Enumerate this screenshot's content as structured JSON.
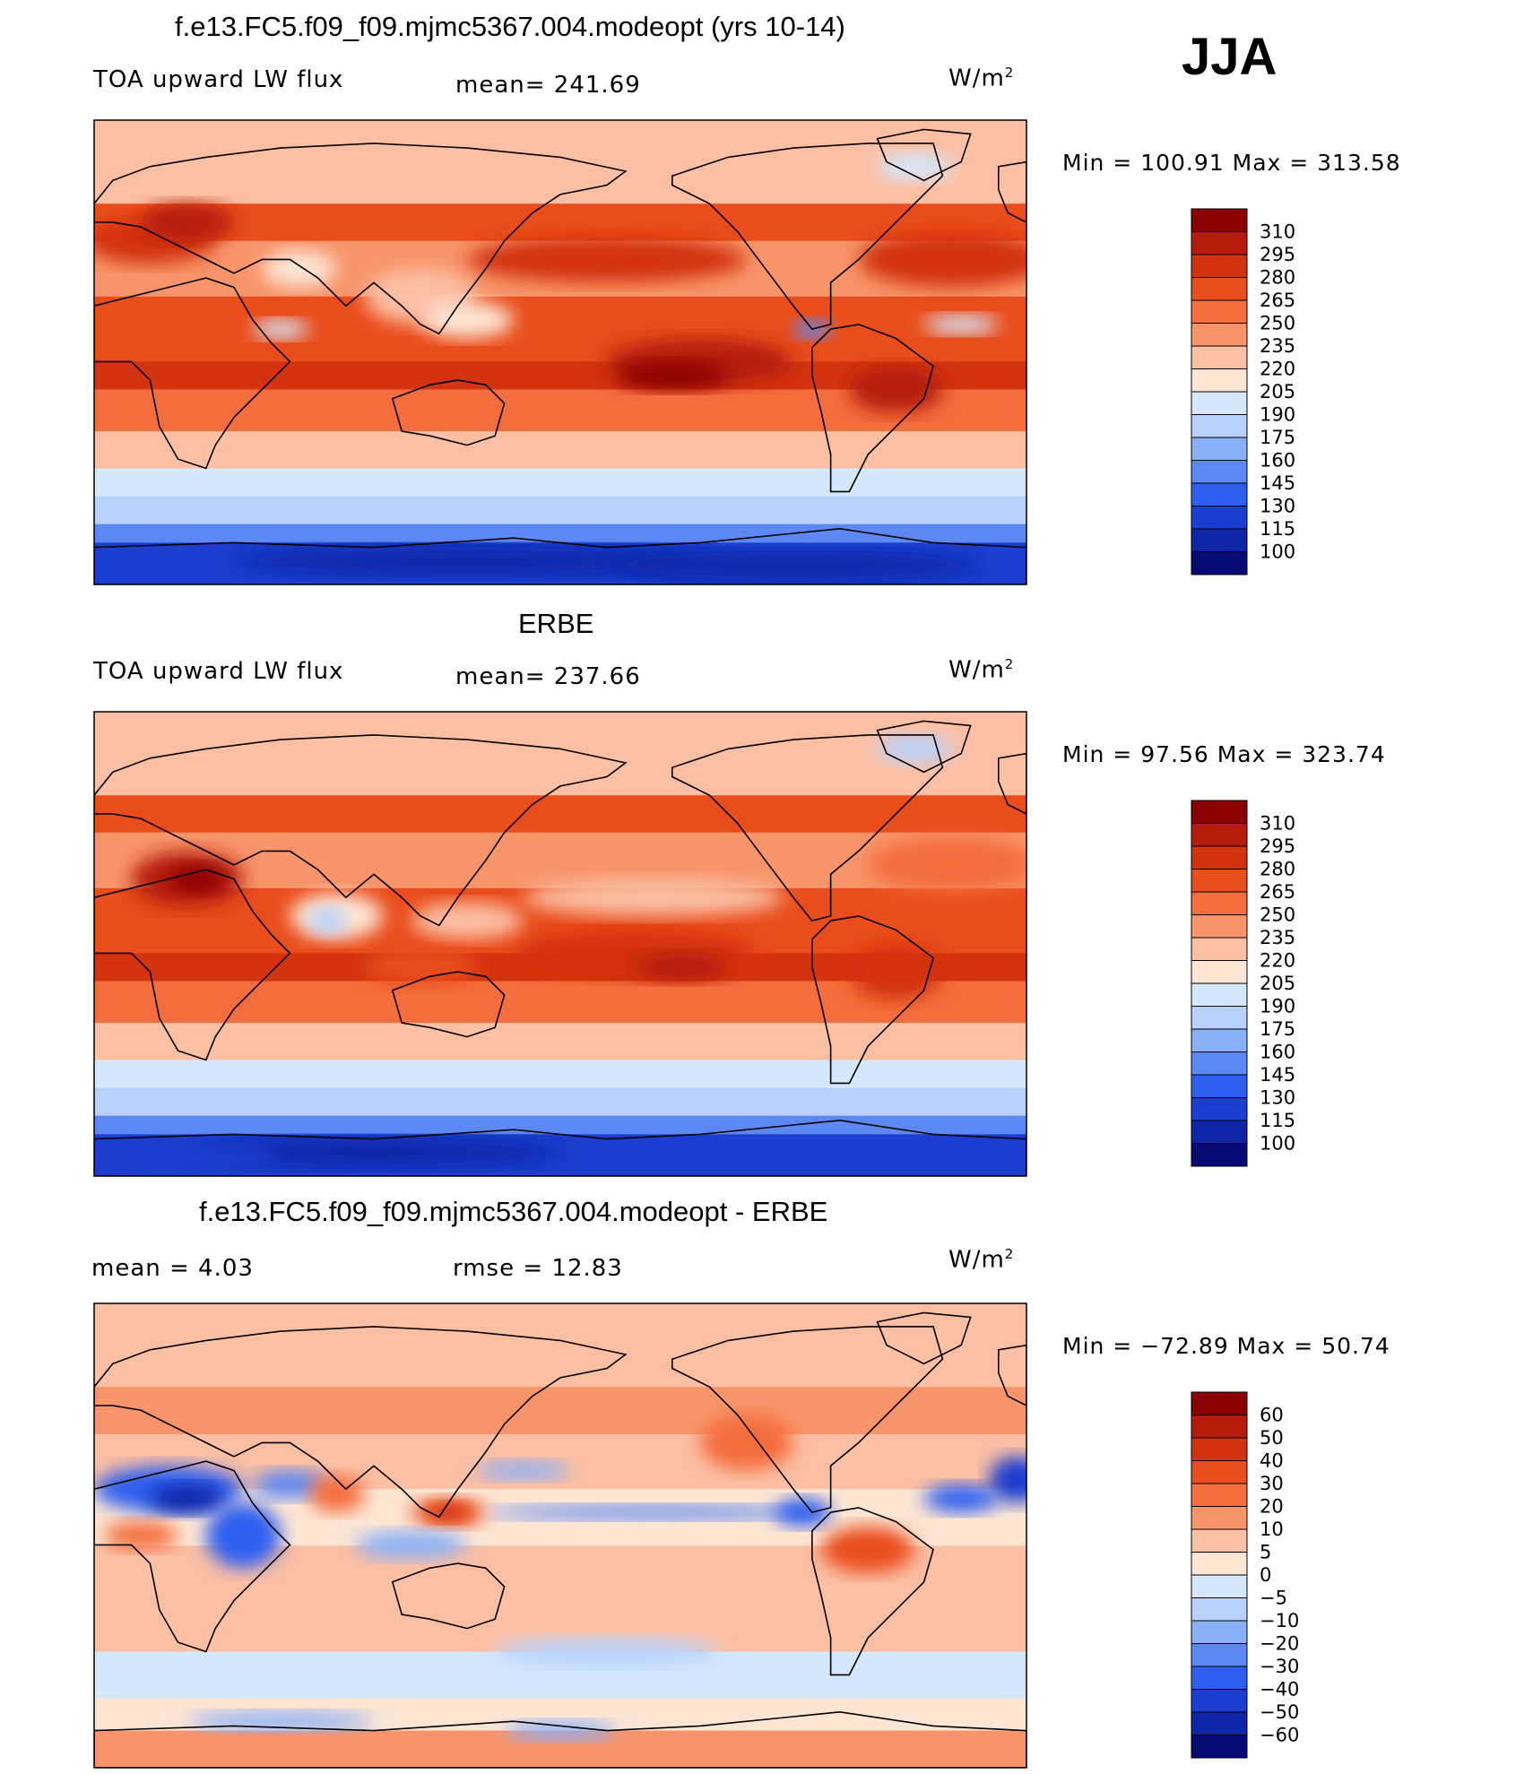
{
  "season": "JJA",
  "chart_data": [
    {
      "type": "heatmap",
      "title": "f.e13.FC5.f09_f09.mjmc5367.004.modeopt (yrs 10-14)",
      "left_label": "TOA upward LW flux",
      "center_label": "mean= 241.69",
      "units_label": "W/m",
      "units_sup": "2",
      "minmax": "Min = 100.91 Max = 313.58",
      "mean": 241.69,
      "min": 100.91,
      "max": 313.58,
      "colorbar_levels": [
        "310",
        "295",
        "280",
        "265",
        "250",
        "235",
        "220",
        "205",
        "190",
        "175",
        "160",
        "145",
        "130",
        "115",
        "100"
      ]
    },
    {
      "type": "heatmap",
      "title": "ERBE",
      "left_label": "TOA upward LW flux",
      "center_label": "mean= 237.66",
      "units_label": "W/m",
      "units_sup": "2",
      "minmax": "Min =  97.56 Max = 323.74",
      "mean": 237.66,
      "min": 97.56,
      "max": 323.74,
      "colorbar_levels": [
        "310",
        "295",
        "280",
        "265",
        "250",
        "235",
        "220",
        "205",
        "190",
        "175",
        "160",
        "145",
        "130",
        "115",
        "100"
      ]
    },
    {
      "type": "heatmap",
      "title": "f.e13.FC5.f09_f09.mjmc5367.004.modeopt - ERBE",
      "left_label": "mean =     4.03",
      "center_label": "rmse =    12.83",
      "units_label": "W/m",
      "units_sup": "2",
      "minmax": "Min = −72.89 Max =  50.74",
      "mean": 4.03,
      "rmse": 12.83,
      "min": -72.89,
      "max": 50.74,
      "colorbar_levels": [
        "60",
        "50",
        "40",
        "30",
        "20",
        "10",
        "5",
        "0",
        "−5",
        "−10",
        "−20",
        "−30",
        "−40",
        "−50",
        "−60"
      ]
    }
  ],
  "palettes": {
    "abs": [
      "#8b0000",
      "#b51c0a",
      "#d3330f",
      "#ea4d1c",
      "#f46d3c",
      "#f8946a",
      "#fbbfa4",
      "#fde5d4",
      "#d5e7fb",
      "#b7d1fb",
      "#8ab0f8",
      "#5c88f4",
      "#2f5ff0",
      "#1b3ed0",
      "#0e25a8",
      "#050b73"
    ],
    "diff": [
      "#8b0000",
      "#b51c0a",
      "#d3330f",
      "#ea4d1c",
      "#f46d3c",
      "#f8946a",
      "#fbbfa4",
      "#fde5d4",
      "#d5e7fb",
      "#b7d1fb",
      "#8ab0f8",
      "#5c88f4",
      "#2f5ff0",
      "#1b3ed0",
      "#0e25a8",
      "#050b73"
    ]
  }
}
